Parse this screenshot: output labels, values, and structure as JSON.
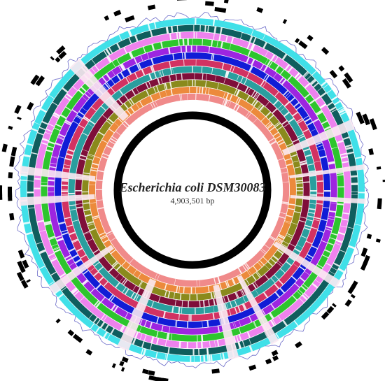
{
  "genome": {
    "name": "Escherichia coli DSM30083",
    "size_label": "4,903,501 bp"
  },
  "ring_colors": {
    "backbone": "#000000",
    "gc_outline": "#6a6ac8",
    "annotation": "#000000",
    "tracks": [
      "#40e0e8",
      "#0f5e5e",
      "#ee82ee",
      "#2dc52d",
      "#9d25e0",
      "#111cd6",
      "#d23262",
      "#2a9e9e",
      "#7f0f3a",
      "#8a8a1c",
      "#ec8a3c",
      "#f08a8a"
    ]
  }
}
